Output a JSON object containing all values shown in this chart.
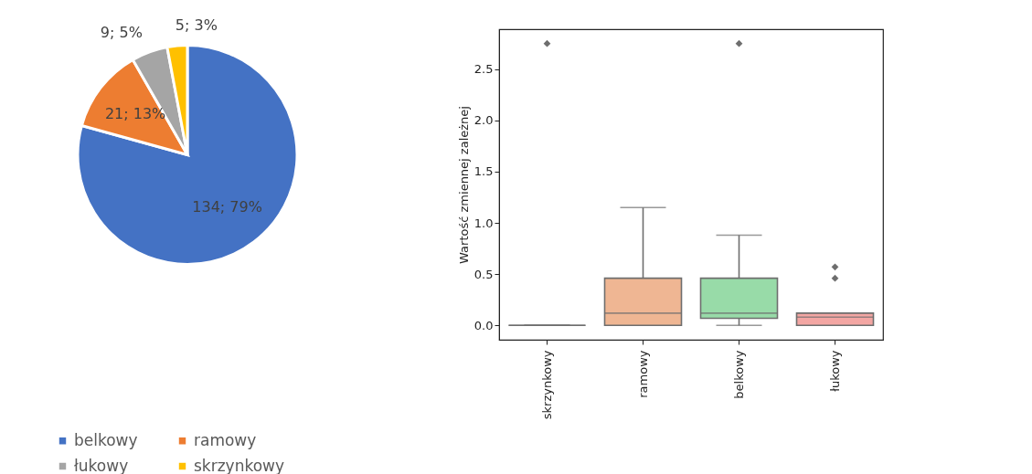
{
  "chart_data": [
    {
      "type": "pie",
      "categories": [
        "belkowy",
        "ramowy",
        "łukowy",
        "skrzynkowy"
      ],
      "values": [
        134,
        21,
        9,
        5
      ],
      "colors": [
        "#4472c4",
        "#ed7d31",
        "#a5a5a5",
        "#ffc000"
      ],
      "value_labels": [
        "134; 79%",
        "21; 13%",
        "9; 5%",
        "5; 3%"
      ],
      "legend": "bottom"
    },
    {
      "type": "box",
      "categories": [
        "skrzynkowy",
        "ramowy",
        "belkowy",
        "łukowy"
      ],
      "ylabel": "Wartość zmiennej zależnej",
      "boxes": [
        {
          "low": 0,
          "q1": 0,
          "median": 0,
          "q3": 0,
          "high": 0,
          "outliers": [
            2.75
          ]
        },
        {
          "low": 0,
          "q1": 0,
          "median": 0.12,
          "q3": 0.46,
          "high": 1.15
        },
        {
          "low": 0,
          "q1": 0.07,
          "median": 0.12,
          "q3": 0.46,
          "high": 0.88,
          "outliers": [
            2.75
          ]
        },
        {
          "low": 0,
          "q1": 0,
          "median": 0.08,
          "q3": 0.12,
          "high": 0.12,
          "outliers": [
            0.57,
            0.46
          ]
        }
      ],
      "colors": [
        null,
        "#efb693",
        "#98dba8",
        "#f3a6a3"
      ],
      "ylim": [
        -0.14,
        2.89
      ],
      "yticks": [
        {
          "value": 0,
          "label": "0.0"
        },
        0.5,
        {
          "value": 1,
          "label": "1.0"
        },
        1.5,
        {
          "value": 2,
          "label": "2.0"
        },
        2.5
      ],
      "grid": false,
      "marker": "diamond"
    }
  ]
}
